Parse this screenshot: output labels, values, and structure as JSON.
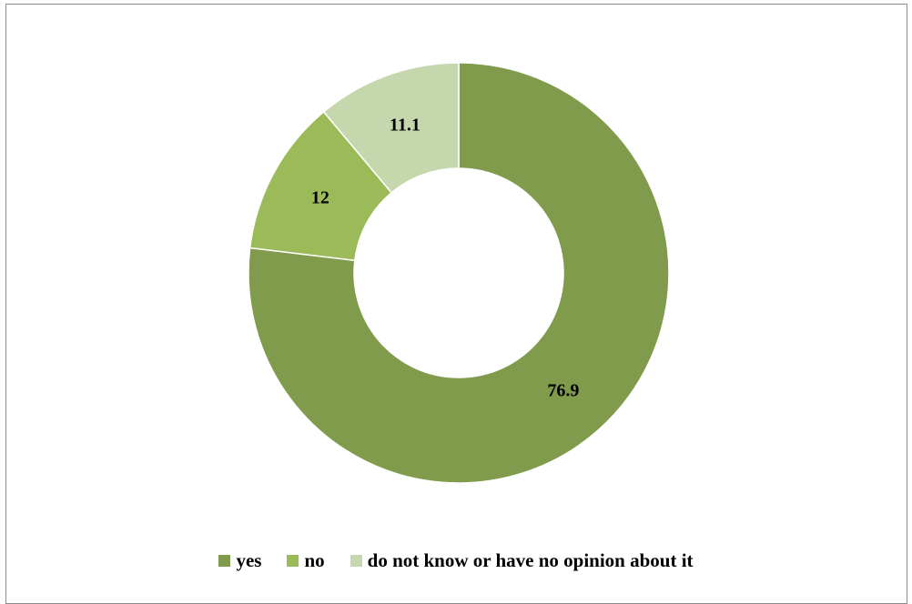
{
  "chart_data": {
    "type": "pie",
    "variant": "donut",
    "categories": [
      "yes",
      "no",
      "do not know or have no opinion about it"
    ],
    "values": [
      76.9,
      12,
      11.1
    ],
    "data_labels": [
      "76.9",
      "12",
      "11.1"
    ],
    "colors": [
      "#7f9b4b",
      "#9bbb59",
      "#c6d7ad"
    ],
    "title": "",
    "legend_position": "bottom",
    "start_angle_deg": 0,
    "direction": "clockwise"
  },
  "legend": {
    "items": [
      {
        "label": "yes",
        "color": "#7f9b4b"
      },
      {
        "label": "no",
        "color": "#9bbb59"
      },
      {
        "label": "do not know or have no opinion about it",
        "color": "#c6d7ad"
      }
    ]
  }
}
